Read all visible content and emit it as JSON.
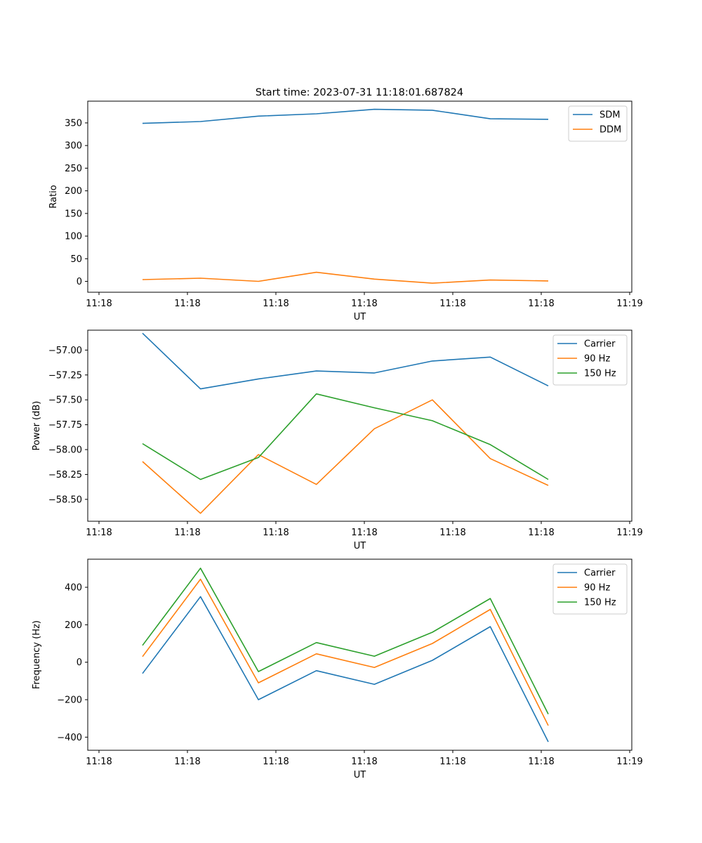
{
  "figure_title": "Start time: 2023-07-31 11:18:01.687824",
  "colors": {
    "blue": "#1f77b4",
    "orange": "#ff7f0e",
    "green": "#2ca02c"
  },
  "chart_data": [
    {
      "type": "line",
      "xlabel": "UT",
      "ylabel": "Ratio",
      "x_tick_labels": [
        "11:18",
        "11:18",
        "11:18",
        "11:18",
        "11:18",
        "11:18",
        "11:19"
      ],
      "x_points": 8,
      "yticks": [
        0,
        50,
        100,
        150,
        200,
        250,
        300,
        350
      ],
      "y_tick_labels": [
        "0",
        "50",
        "100",
        "150",
        "200",
        "250",
        "300",
        "350"
      ],
      "ylim": [
        -24,
        398
      ],
      "legend": "top-right",
      "series": [
        {
          "name": "SDM",
          "color": "#1f77b4",
          "values": [
            349,
            353,
            365,
            370,
            380,
            378,
            359,
            358
          ]
        },
        {
          "name": "DDM",
          "color": "#ff7f0e",
          "values": [
            4,
            7,
            0,
            20,
            5,
            -4,
            3,
            1
          ]
        }
      ]
    },
    {
      "type": "line",
      "xlabel": "UT",
      "ylabel": "Power (dB)",
      "x_tick_labels": [
        "11:18",
        "11:18",
        "11:18",
        "11:18",
        "11:18",
        "11:18",
        "11:19"
      ],
      "x_points": 8,
      "yticks": [
        -58.5,
        -58.25,
        -58.0,
        -57.75,
        -57.5,
        -57.25,
        -57.0
      ],
      "y_tick_labels": [
        "−58.50",
        "−58.25",
        "−58.00",
        "−57.75",
        "−57.50",
        "−57.25",
        "−57.00"
      ],
      "ylim": [
        -58.72,
        -56.8
      ],
      "legend": "top-right",
      "series": [
        {
          "name": "Carrier",
          "color": "#1f77b4",
          "values": [
            -56.83,
            -57.39,
            -57.29,
            -57.21,
            -57.23,
            -57.11,
            -57.07,
            -57.36
          ]
        },
        {
          "name": "90 Hz",
          "color": "#ff7f0e",
          "values": [
            -58.12,
            -58.64,
            -58.05,
            -58.35,
            -57.79,
            -57.5,
            -58.09,
            -58.36
          ]
        },
        {
          "name": "150 Hz",
          "color": "#2ca02c",
          "values": [
            -57.94,
            -58.3,
            -58.08,
            -57.44,
            -57.58,
            -57.71,
            -57.95,
            -58.3
          ]
        }
      ]
    },
    {
      "type": "line",
      "xlabel": "UT",
      "ylabel": "Frequency (Hz)",
      "x_tick_labels": [
        "11:18",
        "11:18",
        "11:18",
        "11:18",
        "11:18",
        "11:18",
        "11:19"
      ],
      "x_points": 8,
      "yticks": [
        -400,
        -200,
        0,
        200,
        400
      ],
      "y_tick_labels": [
        "−400",
        "−200",
        "0",
        "200",
        "400"
      ],
      "ylim": [
        -470,
        550
      ],
      "legend": "top-right",
      "series": [
        {
          "name": "Carrier",
          "color": "#1f77b4",
          "values": [
            -60,
            350,
            -200,
            -45,
            -118,
            10,
            190,
            -425
          ]
        },
        {
          "name": "90 Hz",
          "color": "#ff7f0e",
          "values": [
            30,
            443,
            -110,
            45,
            -28,
            100,
            282,
            -338
          ]
        },
        {
          "name": "150 Hz",
          "color": "#2ca02c",
          "values": [
            90,
            502,
            -50,
            105,
            32,
            160,
            340,
            -277
          ]
        }
      ]
    }
  ]
}
